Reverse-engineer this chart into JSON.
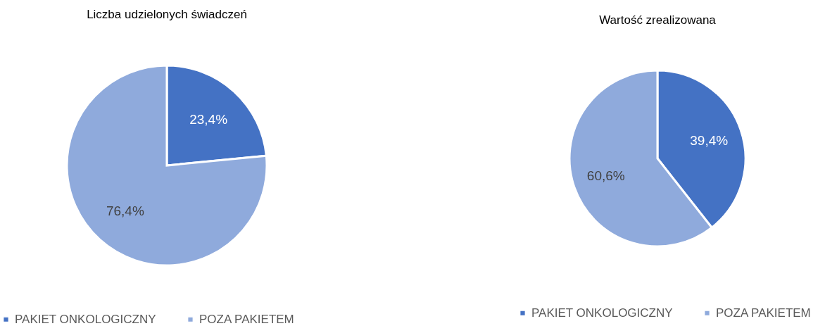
{
  "chart_data": [
    {
      "type": "pie",
      "title": "Liczba udzielonych świadczeń",
      "categories": [
        "PAKIET ONKOLOGICZNY",
        "POZA PAKIETEM"
      ],
      "values": [
        23.4,
        76.4
      ],
      "colors": [
        "#4472c4",
        "#8faadc"
      ],
      "value_labels": [
        "23,4%",
        "76,4%"
      ],
      "legend": "bottom"
    },
    {
      "type": "pie",
      "title": "Wartość zrealizowana",
      "categories": [
        "PAKIET ONKOLOGICZNY",
        "POZA PAKIETEM"
      ],
      "values": [
        39.4,
        60.6
      ],
      "colors": [
        "#4472c4",
        "#8faadc"
      ],
      "value_labels": [
        "39,4%",
        "60,6%"
      ],
      "legend": "bottom"
    }
  ]
}
